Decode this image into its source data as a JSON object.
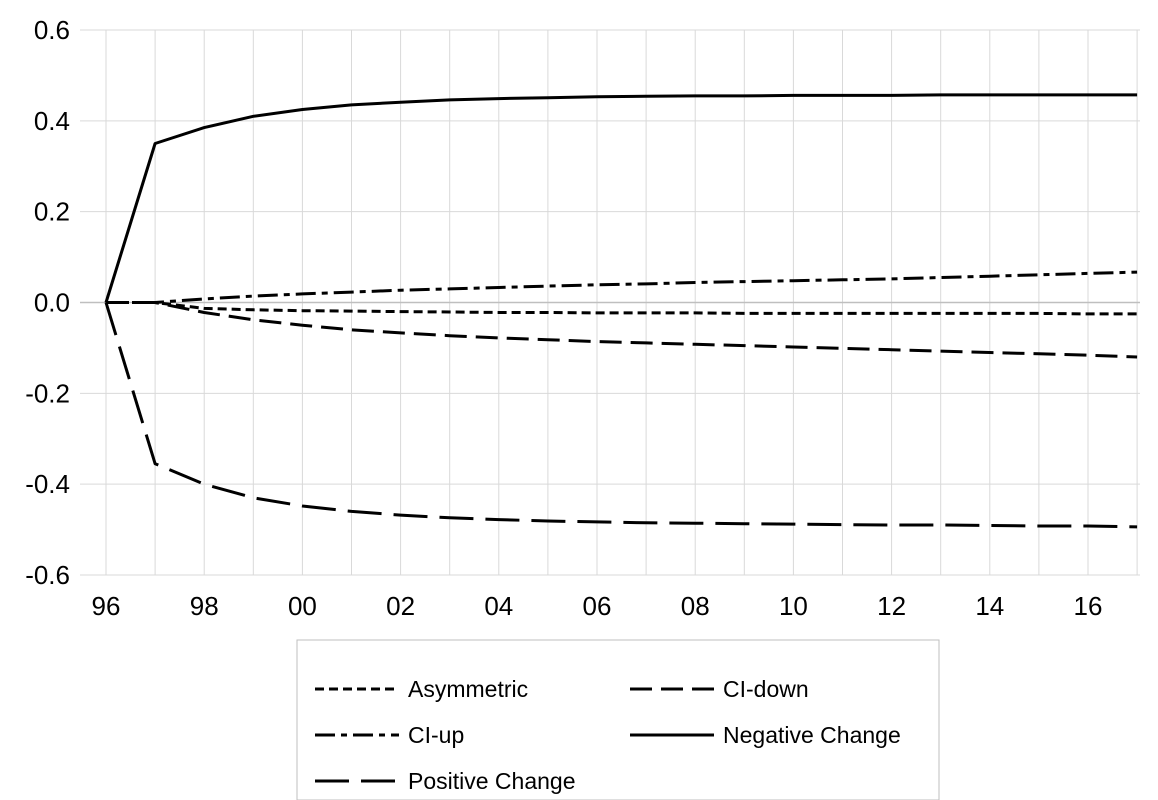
{
  "chart_data": {
    "type": "line",
    "x": [
      "96",
      "97",
      "98",
      "99",
      "00",
      "01",
      "02",
      "03",
      "04",
      "05",
      "06",
      "07",
      "08",
      "09",
      "10",
      "11",
      "12",
      "13",
      "14",
      "15",
      "16",
      "17"
    ],
    "xticks": [
      "96",
      "98",
      "00",
      "02",
      "04",
      "06",
      "08",
      "10",
      "12",
      "14",
      "16"
    ],
    "ylim": [
      -0.6,
      0.6
    ],
    "yticks": [
      "0.6",
      "0.4",
      "0.2",
      "0.0",
      "-0.2",
      "-0.4",
      "-0.6"
    ],
    "grid": true,
    "legend_position": "bottom",
    "series": [
      {
        "name": "Asymmetric",
        "dash": "short-dash",
        "values": [
          0.0,
          0.0,
          -0.013,
          -0.016,
          -0.018,
          -0.019,
          -0.02,
          -0.021,
          -0.022,
          -0.022,
          -0.023,
          -0.023,
          -0.023,
          -0.024,
          -0.024,
          -0.024,
          -0.024,
          -0.024,
          -0.024,
          -0.024,
          -0.025,
          -0.025
        ]
      },
      {
        "name": "CI-down",
        "dash": "long-dash",
        "values": [
          0.0,
          0.0,
          -0.022,
          -0.038,
          -0.05,
          -0.06,
          -0.067,
          -0.073,
          -0.078,
          -0.082,
          -0.086,
          -0.089,
          -0.092,
          -0.095,
          -0.098,
          -0.101,
          -0.104,
          -0.107,
          -0.11,
          -0.113,
          -0.116,
          -0.12
        ]
      },
      {
        "name": "CI-up",
        "dash": "dash-dot",
        "values": [
          0.0,
          0.0,
          0.008,
          0.014,
          0.019,
          0.023,
          0.027,
          0.03,
          0.033,
          0.036,
          0.039,
          0.041,
          0.044,
          0.046,
          0.048,
          0.05,
          0.052,
          0.055,
          0.058,
          0.061,
          0.064,
          0.067
        ]
      },
      {
        "name": "Negative Change",
        "dash": "solid",
        "values": [
          0.0,
          0.35,
          0.385,
          0.41,
          0.425,
          0.435,
          0.441,
          0.446,
          0.449,
          0.451,
          0.453,
          0.454,
          0.455,
          0.455,
          0.456,
          0.456,
          0.456,
          0.457,
          0.457,
          0.457,
          0.457,
          0.457
        ]
      },
      {
        "name": "Positive Change",
        "dash": "extra-long-dash",
        "values": [
          0.0,
          -0.355,
          -0.4,
          -0.43,
          -0.448,
          -0.46,
          -0.468,
          -0.474,
          -0.478,
          -0.481,
          -0.483,
          -0.485,
          -0.486,
          -0.487,
          -0.488,
          -0.489,
          -0.49,
          -0.49,
          -0.491,
          -0.492,
          -0.492,
          -0.494
        ]
      }
    ]
  },
  "colors": {
    "line": "#000000",
    "grid": "#d9d9d9",
    "zero_axis": "#bfbfbf",
    "legend_border": "#bfbfbf"
  }
}
